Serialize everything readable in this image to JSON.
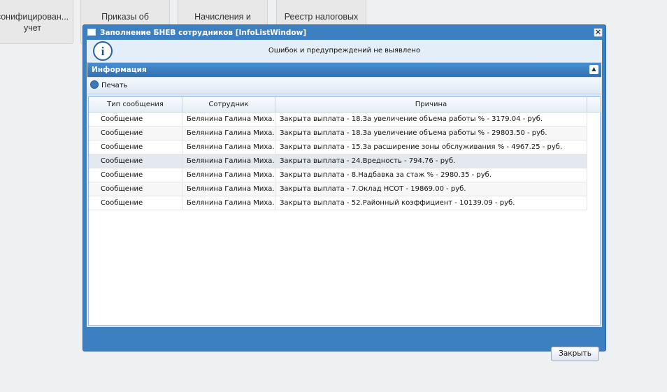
{
  "tiles": [
    {
      "lines": [
        "сонифицирован...",
        "учет"
      ]
    },
    {
      "lines": [
        "Приказы об"
      ]
    },
    {
      "lines": [
        "Начисления и"
      ]
    },
    {
      "lines": [
        "Реестр налоговых"
      ]
    }
  ],
  "window": {
    "title": "Заполнение БНЕВ сотрудников [InfoListWindow]",
    "message": "Ошибок и предупреждений не выявлено",
    "panel_title": "Информация",
    "print_button": "Печать",
    "close_button": "Закрыть",
    "table": {
      "columns": [
        "Тип сообщения",
        "Сотрудник",
        "Причина"
      ],
      "rows": [
        [
          "Сообщение",
          "Белянина Галина Миха...",
          "Закрыта выплата - 18.За увеличение объема работы % - 3179.04 - руб."
        ],
        [
          "Сообщение",
          "Белянина Галина Миха...",
          "Закрыта выплата - 18.За увеличение объема работы % - 29803.50 - руб."
        ],
        [
          "Сообщение",
          "Белянина Галина Миха...",
          "Закрыта выплата - 15.За расширение зоны обслуживания % - 4967.25 - руб."
        ],
        [
          "Сообщение",
          "Белянина Галина Миха...",
          "Закрыта выплата - 24.Вредность - 794.76 - руб."
        ],
        [
          "Сообщение",
          "Белянина Галина Миха...",
          "Закрыта выплата - 8.Надбавка за стаж % - 2980.35 - руб."
        ],
        [
          "Сообщение",
          "Белянина Галина Миха...",
          "Закрыта выплата - 7.Оклад НСОТ - 19869.00 - руб."
        ],
        [
          "Сообщение",
          "Белянина Галина Миха...",
          "Закрыта выплата - 52.Районный коэффициент - 10139.09 - руб."
        ]
      ]
    }
  }
}
